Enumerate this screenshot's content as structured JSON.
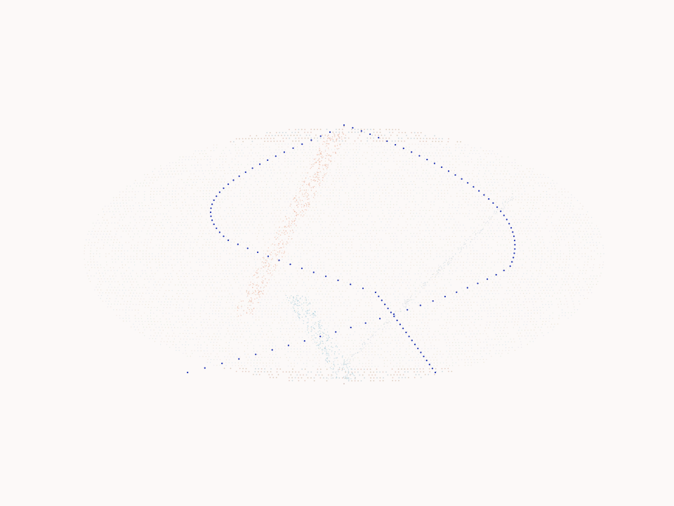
{
  "scene": {
    "background_color": "#fcf9f8",
    "description_icon": "ellipsoid-dot-rings",
    "palette": {
      "ring_dots": [
        "#d9e6ec",
        "#e8e0cf",
        "#ede3dc",
        "#dfe9dd",
        "#e6e4ee"
      ],
      "ring_dots_dense": [
        "#c9d6dc",
        "#d8c9b8",
        "#e2c9bf"
      ],
      "warm_band": "#e6a58c",
      "cool_band": "#9cc6d6",
      "curve_dots": "#1b2fb0"
    }
  }
}
